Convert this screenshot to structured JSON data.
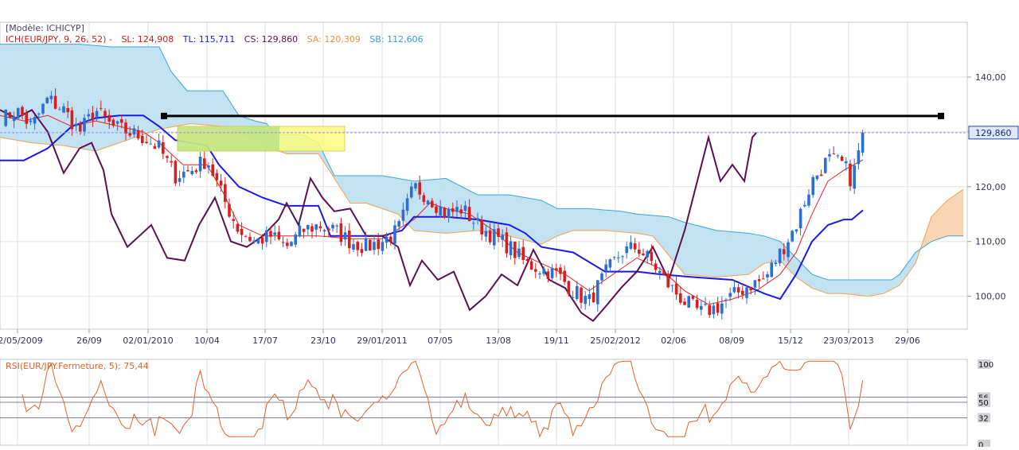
{
  "header": {
    "model": "[Modèle: ICHICYP]",
    "ich_label": "ICH(EUR/JPY, 9, 26, 52) -",
    "sl": "SL: 124,908",
    "tl": "TL: 115,711",
    "cs": "CS: 129,860",
    "sa": "SA: 120,309",
    "sb": "SB: 112,606"
  },
  "colors": {
    "sl": "#e8231e",
    "tl": "#1a1ae6",
    "cs": "#5a1050",
    "sa": "#f5a050",
    "sb": "#3aa8d8",
    "up_candle": "#2d6fd0",
    "down_candle": "#d81e1e",
    "rsi": "#e2622a",
    "price_marker": "#2449a8"
  },
  "chart_data": [
    {
      "type": "candlestick",
      "title": "ICH(EUR/JPY, 9, 26, 52)",
      "x_labels": [
        "02/05/2009",
        "26/09",
        "02/01/2010",
        "10/04",
        "17/07",
        "23/10",
        "29/01/2011",
        "07/05",
        "13/08",
        "19/11",
        "25/02/2012",
        "02/06",
        "08/09",
        "15/12",
        "23/03/2013",
        "29/06"
      ],
      "y_ticks": [
        "140,00",
        "130,00",
        "120,00",
        "110,00",
        "100,00"
      ],
      "y_tick_values": [
        140,
        130,
        120,
        110,
        100
      ],
      "ylim": [
        94,
        150
      ],
      "last_price_label": "129,860",
      "last_price": 129.86,
      "horizontal_line": 132.9,
      "series": [
        {
          "name": "SL",
          "value": 124.908
        },
        {
          "name": "TL",
          "value": 115.711
        },
        {
          "name": "CS",
          "value": 129.86
        },
        {
          "name": "SA",
          "value": 120.309
        },
        {
          "name": "SB",
          "value": 112.606
        }
      ],
      "close_profile": [
        [
          0,
          132
        ],
        [
          20,
          134
        ],
        [
          40,
          131
        ],
        [
          60,
          136
        ],
        [
          80,
          134
        ],
        [
          100,
          130
        ],
        [
          120,
          134
        ],
        [
          140,
          131
        ],
        [
          160,
          130
        ],
        [
          180,
          129
        ],
        [
          200,
          127
        ],
        [
          220,
          122
        ],
        [
          240,
          123
        ],
        [
          260,
          125
        ],
        [
          280,
          118
        ],
        [
          300,
          112
        ],
        [
          320,
          110
        ],
        [
          340,
          111
        ],
        [
          360,
          109
        ],
        [
          380,
          112
        ],
        [
          400,
          113
        ],
        [
          420,
          112
        ],
        [
          440,
          110
        ],
        [
          460,
          109
        ],
        [
          480,
          110
        ],
        [
          500,
          112
        ],
        [
          520,
          120
        ],
        [
          540,
          118
        ],
        [
          560,
          115
        ],
        [
          580,
          116
        ],
        [
          600,
          113
        ],
        [
          620,
          111
        ],
        [
          640,
          109
        ],
        [
          660,
          106
        ],
        [
          680,
          105
        ],
        [
          700,
          104
        ],
        [
          720,
          101
        ],
        [
          740,
          99
        ],
        [
          760,
          104
        ],
        [
          780,
          108
        ],
        [
          800,
          109
        ],
        [
          820,
          106
        ],
        [
          840,
          102
        ],
        [
          860,
          99
        ],
        [
          880,
          97
        ],
        [
          900,
          98
        ],
        [
          920,
          100
        ],
        [
          940,
          102
        ],
        [
          960,
          103
        ],
        [
          980,
          108
        ],
        [
          1000,
          113
        ],
        [
          1020,
          121
        ],
        [
          1040,
          125
        ],
        [
          1060,
          124
        ],
        [
          1070,
          121
        ],
        [
          1084,
          129.86
        ]
      ],
      "tenkan": [
        [
          0,
          133
        ],
        [
          30,
          132
        ],
        [
          60,
          133
        ],
        [
          90,
          131
        ],
        [
          120,
          132
        ],
        [
          150,
          131
        ],
        [
          180,
          130
        ],
        [
          200,
          128
        ],
        [
          230,
          124
        ],
        [
          260,
          124
        ],
        [
          280,
          119
        ],
        [
          300,
          113
        ],
        [
          330,
          111
        ],
        [
          360,
          111
        ],
        [
          400,
          111
        ],
        [
          440,
          110.5
        ],
        [
          480,
          110.5
        ],
        [
          520,
          114
        ],
        [
          540,
          117
        ],
        [
          560,
          116
        ],
        [
          590,
          115
        ],
        [
          620,
          112
        ],
        [
          650,
          108
        ],
        [
          680,
          106
        ],
        [
          710,
          104
        ],
        [
          740,
          101
        ],
        [
          770,
          104
        ],
        [
          800,
          107
        ],
        [
          830,
          105
        ],
        [
          860,
          101
        ],
        [
          890,
          98.5
        ],
        [
          920,
          99.5
        ],
        [
          950,
          101
        ],
        [
          980,
          104
        ],
        [
          1000,
          108
        ],
        [
          1020,
          115
        ],
        [
          1040,
          121
        ],
        [
          1060,
          123
        ],
        [
          1084,
          124.9
        ]
      ],
      "kijun": [
        [
          0,
          124.8
        ],
        [
          30,
          124.8
        ],
        [
          60,
          127
        ],
        [
          90,
          131
        ],
        [
          120,
          132.5
        ],
        [
          150,
          133
        ],
        [
          180,
          133
        ],
        [
          200,
          131
        ],
        [
          220,
          128.5
        ],
        [
          260,
          127.5
        ],
        [
          275,
          124
        ],
        [
          300,
          120
        ],
        [
          330,
          118
        ],
        [
          360,
          116.5
        ],
        [
          400,
          116.5
        ],
        [
          415,
          111
        ],
        [
          440,
          111
        ],
        [
          480,
          111
        ],
        [
          505,
          112
        ],
        [
          520,
          114.5
        ],
        [
          560,
          114.5
        ],
        [
          600,
          114
        ],
        [
          640,
          113
        ],
        [
          660,
          111.5
        ],
        [
          680,
          109
        ],
        [
          720,
          108
        ],
        [
          760,
          104.5
        ],
        [
          800,
          104.5
        ],
        [
          830,
          104
        ],
        [
          870,
          103.5
        ],
        [
          920,
          103
        ],
        [
          960,
          100.5
        ],
        [
          980,
          99.5
        ],
        [
          1000,
          104
        ],
        [
          1020,
          110
        ],
        [
          1040,
          113
        ],
        [
          1060,
          114
        ],
        [
          1070,
          114
        ],
        [
          1084,
          115.7
        ]
      ],
      "senkou_a": [
        [
          0,
          129
        ],
        [
          40,
          128
        ],
        [
          80,
          127.5
        ],
        [
          120,
          126.5
        ],
        [
          160,
          128.5
        ],
        [
          200,
          130.5
        ],
        [
          240,
          131.5
        ],
        [
          280,
          131
        ],
        [
          300,
          130
        ],
        [
          320,
          128
        ],
        [
          340,
          127
        ],
        [
          360,
          126
        ],
        [
          400,
          126
        ],
        [
          420,
          121.5
        ],
        [
          440,
          117
        ],
        [
          460,
          117
        ],
        [
          480,
          116
        ],
        [
          500,
          115
        ],
        [
          520,
          112
        ],
        [
          560,
          111.5
        ],
        [
          600,
          112
        ],
        [
          640,
          111
        ],
        [
          680,
          109.5
        ],
        [
          700,
          111
        ],
        [
          720,
          112
        ],
        [
          760,
          112
        ],
        [
          800,
          111.5
        ],
        [
          820,
          111
        ],
        [
          840,
          107.5
        ],
        [
          860,
          104
        ],
        [
          900,
          103.5
        ],
        [
          940,
          104
        ],
        [
          960,
          106
        ],
        [
          980,
          106.5
        ],
        [
          1000,
          103.5
        ],
        [
          1020,
          101.5
        ],
        [
          1040,
          100.5
        ],
        [
          1060,
          100.5
        ],
        [
          1090,
          100
        ],
        [
          1110,
          100.5
        ],
        [
          1130,
          102
        ],
        [
          1150,
          106
        ],
        [
          1170,
          114.5
        ],
        [
          1190,
          117.5
        ],
        [
          1210,
          119.5
        ]
      ],
      "senkou_b": [
        [
          0,
          146
        ],
        [
          40,
          146
        ],
        [
          100,
          146
        ],
        [
          140,
          145.5
        ],
        [
          180,
          145.5
        ],
        [
          200,
          145.5
        ],
        [
          215,
          141
        ],
        [
          235,
          137.5
        ],
        [
          280,
          137.5
        ],
        [
          300,
          133
        ],
        [
          320,
          132
        ],
        [
          335,
          131.5
        ],
        [
          345,
          129.5
        ],
        [
          380,
          129.5
        ],
        [
          400,
          128
        ],
        [
          420,
          122
        ],
        [
          440,
          122
        ],
        [
          480,
          122
        ],
        [
          500,
          121.5
        ],
        [
          520,
          121
        ],
        [
          560,
          121.5
        ],
        [
          600,
          118.5
        ],
        [
          640,
          118.5
        ],
        [
          680,
          117.5
        ],
        [
          700,
          116
        ],
        [
          740,
          116
        ],
        [
          780,
          115.5
        ],
        [
          800,
          115
        ],
        [
          840,
          114.5
        ],
        [
          860,
          113.5
        ],
        [
          900,
          112
        ],
        [
          940,
          111.5
        ],
        [
          960,
          111
        ],
        [
          980,
          110
        ],
        [
          1000,
          107
        ],
        [
          1020,
          104
        ],
        [
          1040,
          103
        ],
        [
          1080,
          103
        ],
        [
          1120,
          103
        ],
        [
          1130,
          104
        ],
        [
          1150,
          108
        ],
        [
          1170,
          110
        ],
        [
          1190,
          111
        ],
        [
          1210,
          111
        ]
      ],
      "chikou": [
        [
          0,
          134
        ],
        [
          20,
          132.5
        ],
        [
          40,
          134
        ],
        [
          60,
          130
        ],
        [
          80,
          122.5
        ],
        [
          100,
          127
        ],
        [
          115,
          128
        ],
        [
          130,
          123
        ],
        [
          140,
          115
        ],
        [
          160,
          109
        ],
        [
          175,
          111
        ],
        [
          190,
          113
        ],
        [
          210,
          107
        ],
        [
          232,
          106.5
        ],
        [
          250,
          113
        ],
        [
          270,
          118
        ],
        [
          290,
          110
        ],
        [
          310,
          109
        ],
        [
          330,
          111
        ],
        [
          350,
          114
        ],
        [
          360,
          117
        ],
        [
          375,
          113
        ],
        [
          390,
          121.5
        ],
        [
          405,
          118
        ],
        [
          420,
          115.5
        ],
        [
          440,
          116
        ],
        [
          460,
          111
        ],
        [
          480,
          111
        ],
        [
          500,
          109
        ],
        [
          515,
          102
        ],
        [
          530,
          106.5
        ],
        [
          550,
          103
        ],
        [
          570,
          104.5
        ],
        [
          590,
          97.5
        ],
        [
          610,
          100
        ],
        [
          630,
          104
        ],
        [
          650,
          102
        ],
        [
          670,
          108.5
        ],
        [
          690,
          103
        ],
        [
          710,
          101.5
        ],
        [
          730,
          97
        ],
        [
          745,
          95.5
        ],
        [
          760,
          98
        ],
        [
          780,
          101.5
        ],
        [
          800,
          104.5
        ],
        [
          820,
          109
        ],
        [
          840,
          103
        ],
        [
          860,
          112
        ],
        [
          875,
          120.5
        ],
        [
          890,
          129
        ],
        [
          905,
          121
        ],
        [
          920,
          124
        ],
        [
          935,
          121
        ],
        [
          945,
          129
        ],
        [
          950,
          129.86
        ]
      ]
    },
    {
      "type": "line",
      "title": "RSI(EUR/JPY.Fermeture, 5): 75,44",
      "y_ticks": [
        "100",
        "56",
        "50",
        "32",
        "0"
      ],
      "y_tick_values": [
        100,
        56,
        50,
        32,
        0
      ],
      "ylim": [
        0,
        100
      ],
      "reference_lines": [
        56,
        50,
        32
      ],
      "last_value": 75.44
    }
  ]
}
